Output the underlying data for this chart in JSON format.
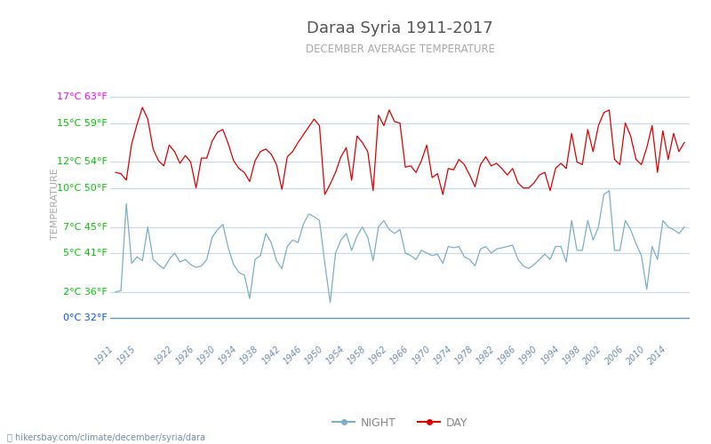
{
  "title": "Daraa Syria 1911-2017",
  "subtitle": "DECEMBER AVERAGE TEMPERATURE",
  "ylabel": "TEMPERATURE",
  "url_text": "hikersbay.com/climate/december/syria/dara",
  "year_start": 1911,
  "year_end": 2017,
  "yticks_c": [
    0,
    2,
    5,
    7,
    10,
    12,
    15,
    17
  ],
  "yticks_f": [
    32,
    36,
    41,
    45,
    50,
    54,
    59,
    63
  ],
  "ytick_colors": [
    "#0055ff",
    "#00cc00",
    "#00cc00",
    "#00cc00",
    "#00cc00",
    "#00cc00",
    "#00cc00",
    "#ff00ff"
  ],
  "day_color": "#dd0000",
  "night_color": "#7ab0c8",
  "grid_color": "#c8d8e8",
  "background_color": "#ffffff",
  "title_color": "#555555",
  "subtitle_color": "#aaaaaa",
  "ylabel_color": "#aaaaaa",
  "url_color": "#7090b0",
  "xtick_color": "#7090b0",
  "day_data": [
    11.2,
    11.1,
    10.6,
    13.4,
    14.9,
    16.2,
    15.3,
    13.0,
    12.1,
    11.7,
    13.3,
    12.8,
    11.9,
    12.5,
    12.0,
    10.0,
    12.3,
    12.3,
    13.6,
    14.3,
    14.5,
    13.4,
    12.1,
    11.5,
    11.2,
    10.5,
    12.1,
    12.8,
    13.0,
    12.6,
    11.8,
    9.9,
    12.4,
    12.8,
    13.5,
    14.1,
    14.7,
    15.3,
    14.8,
    9.5,
    10.3,
    11.2,
    12.4,
    13.1,
    10.6,
    14.0,
    13.5,
    12.8,
    9.8,
    15.6,
    14.8,
    16.0,
    15.1,
    15.0,
    11.6,
    11.7,
    11.2,
    12.1,
    13.3,
    10.8,
    11.1,
    9.5,
    11.5,
    11.4,
    12.2,
    11.8,
    11.0,
    10.1,
    11.8,
    12.4,
    11.7,
    11.9,
    11.5,
    11.0,
    11.5,
    10.4,
    10.0,
    10.0,
    10.4,
    11.0,
    11.2,
    9.8,
    11.5,
    11.9,
    11.5,
    14.2,
    12.0,
    11.8,
    14.5,
    12.8,
    14.8,
    15.8,
    16.0,
    12.2,
    11.8,
    15.0,
    14.0,
    12.2,
    11.8,
    13.1,
    14.8,
    11.2,
    14.4,
    12.2,
    14.2,
    12.8,
    13.5
  ],
  "night_data": [
    2.0,
    2.1,
    8.8,
    4.2,
    4.7,
    4.4,
    7.0,
    4.5,
    4.1,
    3.8,
    4.5,
    5.0,
    4.3,
    4.5,
    4.1,
    3.9,
    4.0,
    4.5,
    6.2,
    6.8,
    7.2,
    5.4,
    4.1,
    3.5,
    3.3,
    1.5,
    4.5,
    4.8,
    6.5,
    5.8,
    4.4,
    3.8,
    5.5,
    6.0,
    5.8,
    7.2,
    8.0,
    7.8,
    7.5,
    4.2,
    1.2,
    5.0,
    6.0,
    6.5,
    5.2,
    6.3,
    7.0,
    6.2,
    4.4,
    7.0,
    7.5,
    6.8,
    6.5,
    6.8,
    5.0,
    4.8,
    4.5,
    5.2,
    5.0,
    4.8,
    4.9,
    4.2,
    5.5,
    5.4,
    5.5,
    4.7,
    4.5,
    4.0,
    5.3,
    5.5,
    5.0,
    5.3,
    5.4,
    5.5,
    5.6,
    4.5,
    4.0,
    3.8,
    4.1,
    4.5,
    4.9,
    4.5,
    5.5,
    5.5,
    4.3,
    7.5,
    5.2,
    5.2,
    7.5,
    6.0,
    7.0,
    9.5,
    9.8,
    5.2,
    5.2,
    7.5,
    6.8,
    5.7,
    4.8,
    2.2,
    5.5,
    4.5,
    7.5,
    7.0,
    6.8,
    6.5,
    7.0
  ],
  "x_tick_labels": [
    1911,
    1915,
    1922,
    1926,
    1930,
    1934,
    1938,
    1942,
    1946,
    1950,
    1954,
    1958,
    1962,
    1966,
    1970,
    1974,
    1978,
    1982,
    1986,
    1990,
    1994,
    1998,
    2002,
    2006,
    2010,
    2014
  ]
}
